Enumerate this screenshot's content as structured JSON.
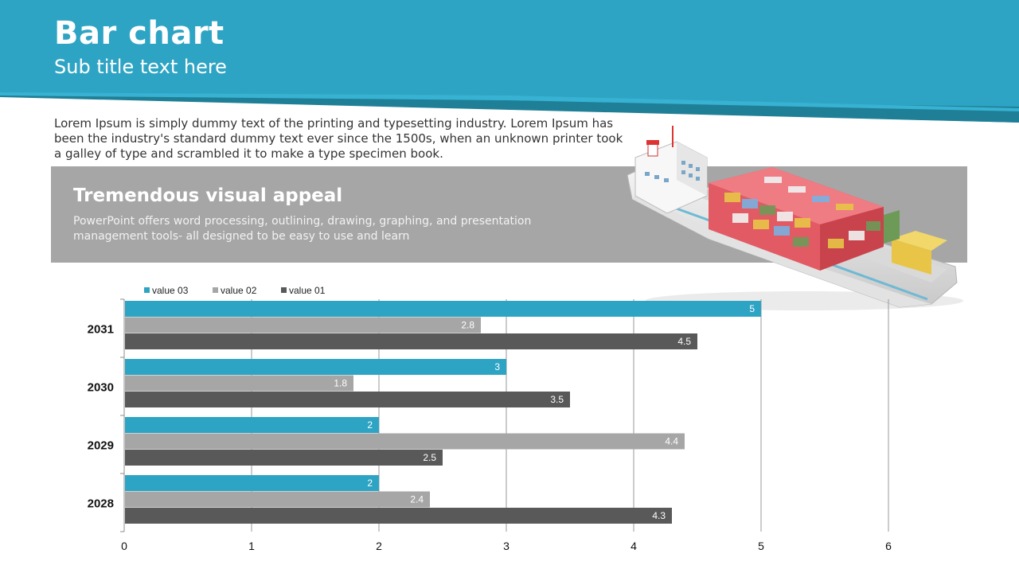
{
  "header": {
    "title": "Bar chart",
    "subtitle": "Sub title text here"
  },
  "intro": {
    "text": "Lorem Ipsum is simply dummy text of the printing and typesetting industry. Lorem Ipsum has been the industry's standard dummy text ever since the 1500s, when an unknown printer took a galley of type and scrambled it to make a type specimen book."
  },
  "panel": {
    "heading": "Tremendous visual appeal",
    "text": "PowerPoint offers word processing, outlining, drawing, graphing, and presentation management tools- all designed to be easy to use and learn"
  },
  "colors": {
    "accent": "#2ea4c4",
    "panel": "#a6a6a6",
    "dark_teal": "#1f7f96"
  },
  "chart_data": {
    "type": "bar",
    "orientation": "horizontal",
    "categories": [
      "2031",
      "2030",
      "2029",
      "2028"
    ],
    "series": [
      {
        "name": "value 03",
        "color": "#2ea4c4",
        "values": [
          5,
          3,
          2,
          2
        ]
      },
      {
        "name": "value 02",
        "color": "#a6a6a6",
        "values": [
          2.8,
          1.8,
          4.4,
          2.4
        ]
      },
      {
        "name": "value 01",
        "color": "#595959",
        "values": [
          4.5,
          3.5,
          2.5,
          4.3
        ]
      }
    ],
    "xlim": [
      0,
      6
    ],
    "xticks": [
      0,
      1,
      2,
      3,
      4,
      5,
      6
    ],
    "grid": true,
    "legend": "top-left",
    "data_labels": true
  }
}
